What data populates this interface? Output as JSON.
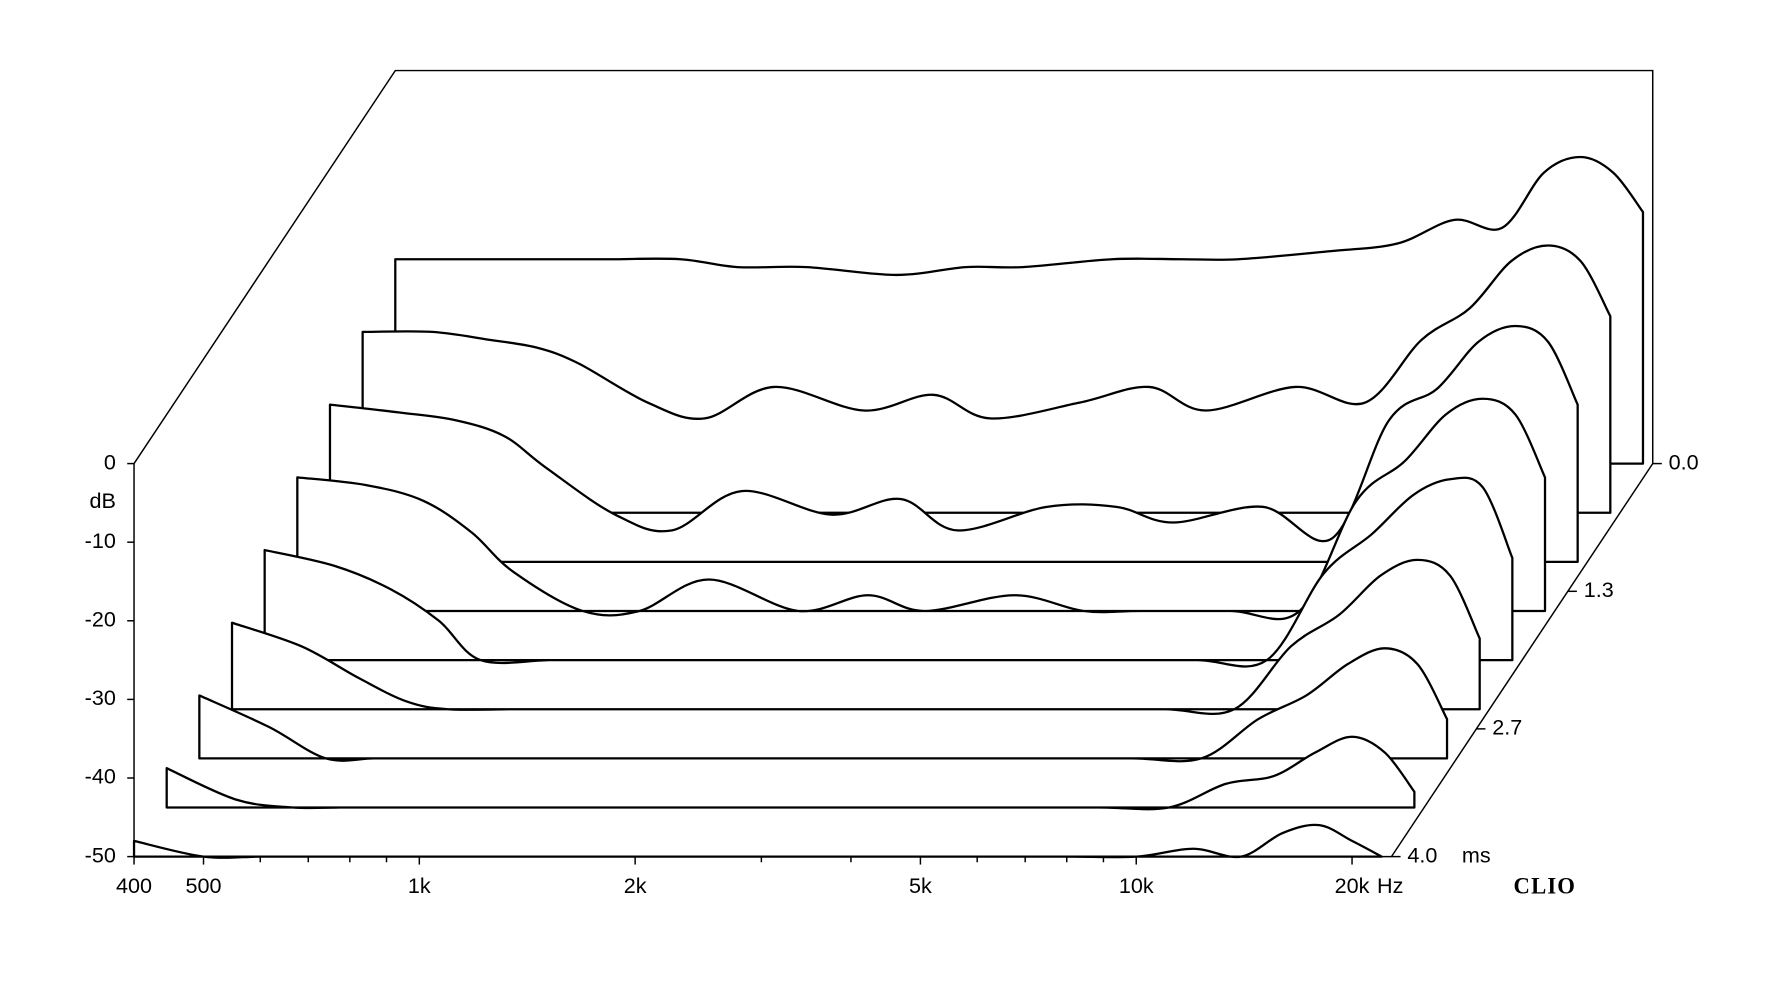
{
  "chart_data": {
    "type": "waterfall",
    "x": [
      400,
      500,
      600,
      700,
      800,
      1000,
      1200,
      1500,
      2000,
      2500,
      3000,
      4000,
      5000,
      6000,
      8000,
      10000,
      12000,
      14000,
      16000,
      18000,
      20000,
      22000
    ],
    "xlim": [
      400,
      22700
    ],
    "xlog": true,
    "xticks": [
      400,
      500,
      {
        "value": 1000,
        "label": "1k"
      },
      {
        "value": 2000,
        "label": "2k"
      },
      {
        "value": 5000,
        "label": "5k"
      },
      {
        "value": 10000,
        "label": "10k"
      },
      {
        "value": 20000,
        "label": "20k"
      }
    ],
    "xminorticks": [
      600,
      700,
      800,
      900,
      3000,
      4000,
      6000,
      7000,
      8000,
      9000
    ],
    "x_unit": "Hz",
    "ylim": [
      -50,
      0
    ],
    "yticks": [
      0,
      -10,
      -20,
      -30,
      -40,
      -50
    ],
    "y_unit": "dB",
    "zlim": [
      0,
      4.0
    ],
    "zticks": [
      {
        "value": 0,
        "label": "0.0"
      },
      1.3,
      2.7,
      {
        "value": 4,
        "label": "4.0"
      }
    ],
    "z_unit": "ms",
    "z": [
      0,
      0.5,
      1.0,
      1.5,
      2.0,
      2.5,
      3.0,
      3.5,
      4.0
    ],
    "series": [
      {
        "values": [
          -24,
          -24,
          -24,
          -24,
          -24,
          -24,
          -25,
          -25,
          -26,
          -25,
          -25,
          -24,
          -24,
          -24,
          -23,
          -22,
          -19,
          -20,
          -13,
          -11,
          -13,
          -18
        ]
      },
      {
        "values": [
          -27,
          -27,
          -28,
          -29,
          -31,
          -36,
          -38,
          -34,
          -37,
          -35,
          -38,
          -36,
          -34,
          -37,
          -34,
          -36,
          -28,
          -24,
          -18,
          -16,
          -18,
          -25
        ]
      },
      {
        "values": [
          -30,
          -31,
          -32,
          -34,
          -38,
          -44,
          -46,
          -41,
          -44,
          -42,
          -46,
          -43,
          -43,
          -45,
          -43,
          -47,
          -32,
          -28,
          -22,
          -20,
          -22,
          -30
        ]
      },
      {
        "values": [
          -33,
          -34,
          -36,
          -40,
          -45,
          -50,
          -50,
          -46,
          -50,
          -48,
          -50,
          -48,
          -50,
          -50,
          -50,
          -50,
          -36,
          -31,
          -25,
          -23,
          -25,
          -33
        ]
      },
      {
        "values": [
          -36,
          -38,
          -41,
          -45,
          -50,
          -50,
          -50,
          -50,
          -50,
          -50,
          -50,
          -50,
          -50,
          -50,
          -50,
          -50,
          -39,
          -34,
          -29,
          -27,
          -28,
          -37
        ]
      },
      {
        "values": [
          -39,
          -42,
          -46,
          -49,
          -50,
          -50,
          -50,
          -50,
          -50,
          -50,
          -50,
          -50,
          -50,
          -50,
          -50,
          -50,
          -42,
          -38,
          -33,
          -31,
          -33,
          -41
        ]
      },
      {
        "values": [
          -42,
          -46,
          -50,
          -50,
          -50,
          -50,
          -50,
          -50,
          -50,
          -50,
          -50,
          -50,
          -50,
          -50,
          -50,
          -50,
          -45,
          -42,
          -38,
          -36,
          -38,
          -45
        ]
      },
      {
        "values": [
          -45,
          -49,
          -50,
          -50,
          -50,
          -50,
          -50,
          -50,
          -50,
          -50,
          -50,
          -50,
          -50,
          -50,
          -50,
          -50,
          -47,
          -46,
          -43,
          -41,
          -43,
          -48
        ]
      },
      {
        "values": [
          -48,
          -50,
          -50,
          -50,
          -50,
          -50,
          -50,
          -50,
          -50,
          -50,
          -50,
          -50,
          -50,
          -50,
          -50,
          -50,
          -49,
          -50,
          -47,
          -46,
          -48,
          -50
        ]
      }
    ],
    "brand": "CLIO"
  }
}
